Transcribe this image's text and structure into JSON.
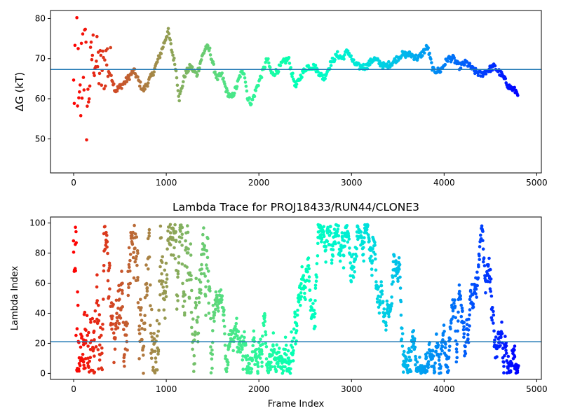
{
  "chart_data": [
    {
      "type": "scatter",
      "title": "",
      "xlabel": "",
      "ylabel": "ΔG (kT)",
      "xlim": [
        -250,
        5050
      ],
      "ylim": [
        41.5,
        82
      ],
      "xticks": [
        0,
        1000,
        2000,
        3000,
        4000,
        5000
      ],
      "xtick_labels": [
        "0",
        "1000",
        "2000",
        "3000",
        "4000",
        "5000"
      ],
      "yticks": [
        50,
        60,
        70,
        80
      ],
      "ytick_labels": [
        "50",
        "60",
        "70",
        "80"
      ],
      "grid": false,
      "hline": 67.3,
      "hline_color": "#1f77b4",
      "colormap": "rainbow (red at frame 0 → violet at final frame)",
      "frame_range": [
        0,
        4800
      ],
      "trend": [
        [
          0,
          60
        ],
        [
          30,
          80
        ],
        [
          60,
          50
        ],
        [
          100,
          75
        ],
        [
          150,
          58
        ],
        [
          200,
          72
        ],
        [
          300,
          66
        ],
        [
          360,
          70
        ],
        [
          450,
          62
        ],
        [
          550,
          64
        ],
        [
          650,
          67
        ],
        [
          750,
          62
        ],
        [
          850,
          66
        ],
        [
          950,
          72
        ],
        [
          1020,
          77
        ],
        [
          1060,
          72
        ],
        [
          1100,
          68
        ],
        [
          1140,
          60
        ],
        [
          1200,
          66
        ],
        [
          1260,
          68
        ],
        [
          1330,
          66
        ],
        [
          1380,
          70
        ],
        [
          1430,
          73
        ],
        [
          1470,
          72
        ],
        [
          1510,
          68
        ],
        [
          1550,
          65
        ],
        [
          1600,
          66
        ],
        [
          1650,
          62
        ],
        [
          1700,
          60
        ],
        [
          1760,
          63
        ],
        [
          1800,
          66
        ],
        [
          1840,
          67
        ],
        [
          1880,
          60
        ],
        [
          1920,
          59
        ],
        [
          1980,
          63
        ],
        [
          2030,
          66
        ],
        [
          2090,
          70
        ],
        [
          2140,
          66
        ],
        [
          2200,
          67
        ],
        [
          2260,
          69
        ],
        [
          2320,
          70
        ],
        [
          2360,
          66
        ],
        [
          2400,
          63
        ],
        [
          2460,
          66
        ],
        [
          2520,
          68
        ],
        [
          2600,
          68
        ],
        [
          2700,
          65
        ],
        [
          2780,
          69
        ],
        [
          2850,
          71
        ],
        [
          2900,
          70
        ],
        [
          2960,
          72
        ],
        [
          3020,
          69
        ],
        [
          3080,
          68
        ],
        [
          3160,
          68
        ],
        [
          3240,
          70
        ],
        [
          3300,
          69
        ],
        [
          3360,
          68
        ],
        [
          3440,
          69
        ],
        [
          3540,
          71
        ],
        [
          3640,
          71
        ],
        [
          3720,
          70
        ],
        [
          3820,
          73
        ],
        [
          3880,
          67
        ],
        [
          3960,
          67
        ],
        [
          4040,
          70
        ],
        [
          4100,
          70
        ],
        [
          4160,
          68
        ],
        [
          4240,
          69
        ],
        [
          4320,
          67
        ],
        [
          4400,
          66
        ],
        [
          4460,
          67
        ],
        [
          4540,
          68
        ],
        [
          4620,
          66
        ],
        [
          4700,
          63
        ],
        [
          4800,
          61.5
        ]
      ]
    },
    {
      "type": "scatter",
      "title": "Lambda Trace for PROJ18433/RUN44/CLONE3",
      "xlabel": "Frame Index",
      "ylabel": "Lambda Index",
      "xlim": [
        -250,
        5050
      ],
      "ylim": [
        -4,
        104
      ],
      "xticks": [
        0,
        1000,
        2000,
        3000,
        4000,
        5000
      ],
      "xtick_labels": [
        "0",
        "1000",
        "2000",
        "3000",
        "4000",
        "5000"
      ],
      "yticks": [
        0,
        20,
        40,
        60,
        80,
        100
      ],
      "ytick_labels": [
        "0",
        "20",
        "40",
        "60",
        "80",
        "100"
      ],
      "grid": false,
      "hline": 21,
      "hline_color": "#1f77b4",
      "colormap": "rainbow (red at frame 0 → violet at final frame)",
      "frame_range": [
        0,
        4800
      ],
      "lambda_range": [
        0,
        99
      ]
    }
  ]
}
